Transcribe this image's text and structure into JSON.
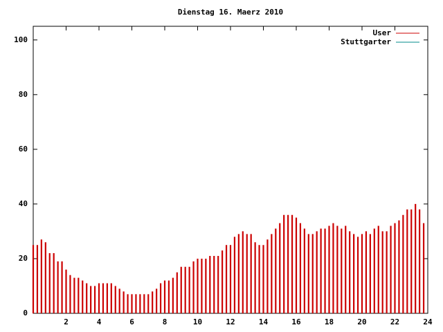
{
  "chart_data": {
    "type": "impulse",
    "title": "Dienstag 16. Maerz 2010",
    "x": [
      0,
      0.25,
      0.5,
      0.75,
      1,
      1.25,
      1.5,
      1.75,
      2,
      2.25,
      2.5,
      2.75,
      3,
      3.25,
      3.5,
      3.75,
      4,
      4.25,
      4.5,
      4.75,
      5,
      5.25,
      5.5,
      5.75,
      6,
      6.25,
      6.5,
      6.75,
      7,
      7.25,
      7.5,
      7.75,
      8,
      8.25,
      8.5,
      8.75,
      9,
      9.25,
      9.5,
      9.75,
      10,
      10.25,
      10.5,
      10.75,
      11,
      11.25,
      11.5,
      11.75,
      12,
      12.25,
      12.5,
      12.75,
      13,
      13.25,
      13.5,
      13.75,
      14,
      14.25,
      14.5,
      14.75,
      15,
      15.25,
      15.5,
      15.75,
      16,
      16.25,
      16.5,
      16.75,
      17,
      17.25,
      17.5,
      17.75,
      18,
      18.25,
      18.5,
      18.75,
      19,
      19.25,
      19.5,
      19.75,
      20,
      20.25,
      20.5,
      20.75,
      21,
      21.25,
      21.5,
      21.75,
      22,
      22.25,
      22.5,
      22.75,
      23,
      23.25,
      23.5,
      23.75
    ],
    "series": [
      {
        "name": "User",
        "color": "#cc0000",
        "values": [
          25,
          25,
          27,
          26,
          22,
          22,
          19,
          19,
          16,
          14,
          13,
          13,
          12,
          11,
          10,
          10,
          11,
          11,
          11,
          11,
          10,
          9,
          8,
          7,
          7,
          7,
          7,
          7,
          7,
          8,
          9,
          11,
          12,
          12,
          13,
          15,
          17,
          17,
          17,
          19,
          20,
          20,
          20,
          21,
          21,
          21,
          23,
          25,
          25,
          28,
          29,
          30,
          29,
          29,
          26,
          25,
          25,
          27,
          29,
          31,
          33,
          36,
          36,
          36,
          35,
          33,
          31,
          29,
          29,
          30,
          31,
          31,
          32,
          33,
          32,
          31,
          32,
          30,
          29,
          28,
          29,
          30,
          29,
          31,
          32,
          30,
          30,
          32,
          33,
          34,
          36,
          38,
          38,
          40,
          38,
          33
        ]
      },
      {
        "name": "Stuttgarter",
        "color": "#008b8b",
        "values": [
          null,
          null,
          null,
          null,
          null,
          null,
          null,
          null,
          null,
          null,
          null,
          null,
          null,
          null,
          null,
          null,
          null,
          null,
          null,
          null,
          null,
          null,
          null,
          null,
          null,
          null,
          null,
          null,
          null,
          null,
          null,
          null,
          null,
          null,
          null,
          null,
          null,
          null,
          null,
          null,
          null,
          null,
          null,
          null,
          null,
          null,
          null,
          null,
          null,
          null,
          null,
          null,
          null,
          null,
          null,
          null,
          null,
          null,
          null,
          null,
          null,
          null,
          null,
          null,
          null,
          null,
          null,
          null,
          null,
          null,
          null,
          null,
          null,
          null,
          null,
          null,
          null,
          null,
          null,
          null,
          null,
          null,
          null,
          null,
          null,
          null,
          null,
          null,
          null,
          null,
          null,
          null,
          null,
          null,
          null,
          null
        ]
      }
    ],
    "xlim": [
      0,
      24
    ],
    "xticks": [
      2,
      4,
      6,
      8,
      10,
      12,
      14,
      16,
      18,
      20,
      22,
      24
    ],
    "ylim": [
      0,
      105
    ],
    "yticks": [
      0,
      20,
      40,
      60,
      80,
      100
    ],
    "grid": false,
    "legend": "top-right"
  }
}
